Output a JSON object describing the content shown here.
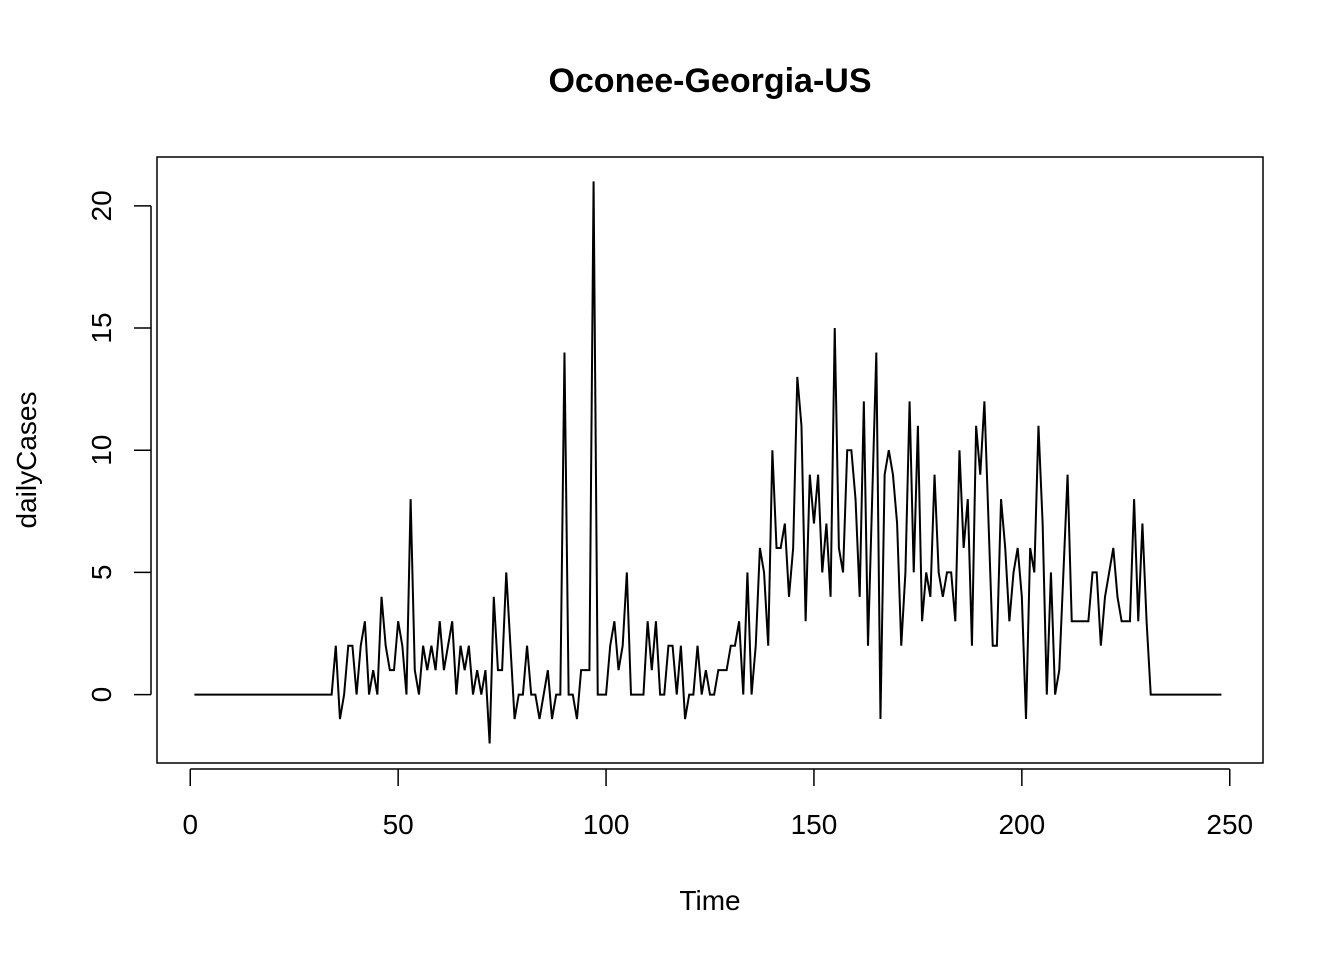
{
  "chart_data": {
    "type": "line",
    "title": "Oconee-Georgia-US",
    "xlabel": "Time",
    "ylabel": "dailyCases",
    "xlim": [
      -8,
      258
    ],
    "ylim": [
      -2.8,
      22
    ],
    "xticks": [
      0,
      50,
      100,
      150,
      200,
      250
    ],
    "yticks": [
      0,
      5,
      10,
      15,
      20
    ],
    "x_start": 1,
    "series": [
      {
        "color": "#000000",
        "values": [
          0,
          0,
          0,
          0,
          0,
          0,
          0,
          0,
          0,
          0,
          0,
          0,
          0,
          0,
          0,
          0,
          0,
          0,
          0,
          0,
          0,
          0,
          0,
          0,
          0,
          0,
          0,
          0,
          0,
          0,
          0,
          0,
          0,
          0,
          2,
          -1,
          0,
          2,
          2,
          0,
          2,
          3,
          0,
          1,
          0,
          4,
          2,
          1,
          1,
          3,
          2,
          0,
          8,
          1,
          0,
          2,
          1,
          2,
          1,
          3,
          1,
          2,
          3,
          0,
          2,
          1,
          2,
          0,
          1,
          0,
          1,
          -2,
          4,
          1,
          1,
          5,
          2,
          -1,
          0,
          0,
          2,
          0,
          0,
          -1,
          0,
          1,
          -1,
          0,
          0,
          14,
          0,
          0,
          -1,
          1,
          1,
          1,
          21,
          0,
          0,
          0,
          2,
          3,
          1,
          2,
          5,
          0,
          0,
          0,
          0,
          3,
          1,
          3,
          0,
          0,
          2,
          2,
          0,
          2,
          -1,
          0,
          0,
          2,
          0,
          1,
          0,
          0,
          1,
          1,
          1,
          2,
          2,
          3,
          0,
          5,
          0,
          2,
          6,
          5,
          2,
          10,
          6,
          6,
          7,
          4,
          6,
          13,
          11,
          3,
          9,
          7,
          9,
          5,
          7,
          4,
          15,
          6,
          5,
          10,
          10,
          8,
          4,
          12,
          2,
          8,
          14,
          -1,
          9,
          10,
          9,
          7,
          2,
          5,
          12,
          5,
          11,
          3,
          5,
          4,
          9,
          5,
          4,
          5,
          5,
          3,
          10,
          6,
          8,
          2,
          11,
          9,
          12,
          7,
          2,
          2,
          8,
          6,
          3,
          5,
          6,
          4,
          -1,
          6,
          5,
          11,
          7,
          0,
          5,
          0,
          1,
          5,
          9,
          3,
          3,
          3,
          3,
          3,
          5,
          5,
          2,
          4,
          5,
          6,
          4,
          3,
          3,
          3,
          8,
          3,
          7,
          3,
          0,
          0,
          0,
          0,
          0,
          0,
          0,
          0,
          0,
          0,
          0,
          0,
          0,
          0,
          0,
          0,
          0,
          0
        ]
      }
    ]
  }
}
